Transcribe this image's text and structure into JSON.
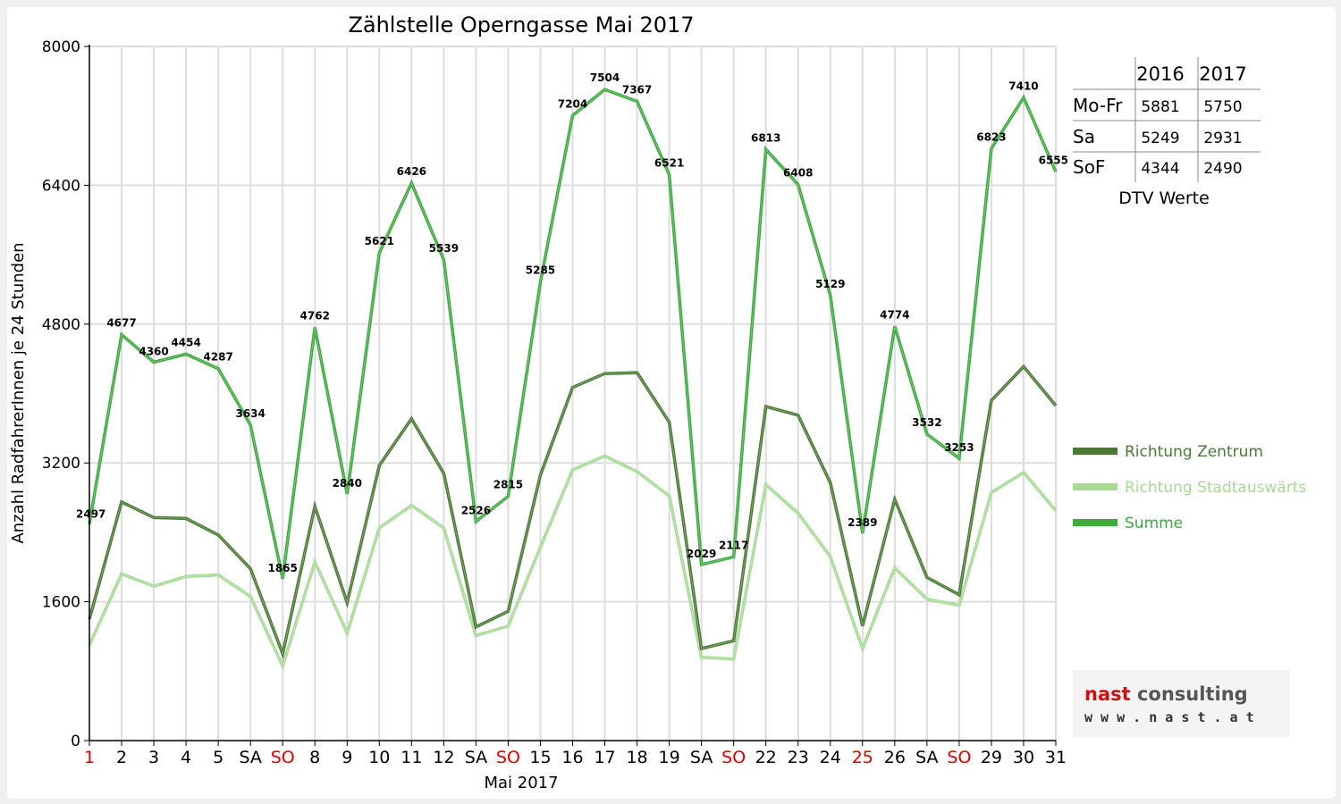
{
  "chart_data": {
    "type": "line",
    "title": "Zählstelle Operngasse Mai 2017",
    "xlabel": "Mai 2017",
    "ylabel": "Anzahl RadfahrerInnen je 24 Stunden",
    "ylim": [
      0,
      8000
    ],
    "yticks": [
      0,
      1600,
      3200,
      4800,
      6400,
      8000
    ],
    "grid": true,
    "legend_position": "right",
    "categories": [
      "1",
      "2",
      "3",
      "4",
      "5",
      "SA",
      "SO",
      "8",
      "9",
      "10",
      "11",
      "12",
      "SA",
      "SO",
      "15",
      "16",
      "17",
      "18",
      "19",
      "SA",
      "SO",
      "22",
      "23",
      "24",
      "25",
      "26",
      "SA",
      "SO",
      "29",
      "30",
      "31"
    ],
    "red_categories": [
      0,
      6,
      13,
      20,
      24,
      27
    ],
    "series": [
      {
        "name": "Richtung Zentrum",
        "color": "#4a7a35",
        "values": [
          1400,
          2750,
          2570,
          2560,
          2370,
          1980,
          1000,
          2700,
          1590,
          3170,
          3710,
          3080,
          1310,
          1490,
          3060,
          4070,
          4230,
          4240,
          3670,
          1060,
          1150,
          3850,
          3750,
          2970,
          1320,
          2780,
          1880,
          1680,
          3920,
          4310,
          3860
        ]
      },
      {
        "name": "Richtung Stadtauswärts",
        "color": "#a6da96",
        "values": [
          1100,
          1920,
          1780,
          1890,
          1910,
          1660,
          860,
          2060,
          1240,
          2450,
          2710,
          2450,
          1210,
          1320,
          2230,
          3120,
          3280,
          3100,
          2820,
          960,
          940,
          2950,
          2620,
          2120,
          1060,
          1990,
          1630,
          1560,
          2860,
          3090,
          2650
        ]
      },
      {
        "name": "Summe",
        "color": "#3daa3d",
        "values": [
          2497,
          4677,
          4360,
          4454,
          4287,
          3634,
          1865,
          4762,
          2840,
          5621,
          6426,
          5539,
          2526,
          2815,
          5285,
          7204,
          7504,
          7367,
          6521,
          2029,
          2117,
          6813,
          6408,
          5129,
          2389,
          4774,
          3532,
          3253,
          6823,
          7410,
          6555
        ]
      }
    ]
  },
  "table": {
    "caption": "DTV Werte",
    "headers": [
      "",
      "2016",
      "2017"
    ],
    "rows": [
      {
        "label": "Mo-Fr",
        "v2016": "5881",
        "v2017": "5750"
      },
      {
        "label": "Sa",
        "v2016": "5249",
        "v2017": "2931"
      },
      {
        "label": "SoF",
        "v2016": "4344",
        "v2017": "2490"
      }
    ]
  },
  "logo": {
    "line1_a": "nast",
    "line1_b": " consulting",
    "line2": "w w w . n a s t . a t",
    "color_a": "#d01010",
    "color_b": "#555555"
  }
}
